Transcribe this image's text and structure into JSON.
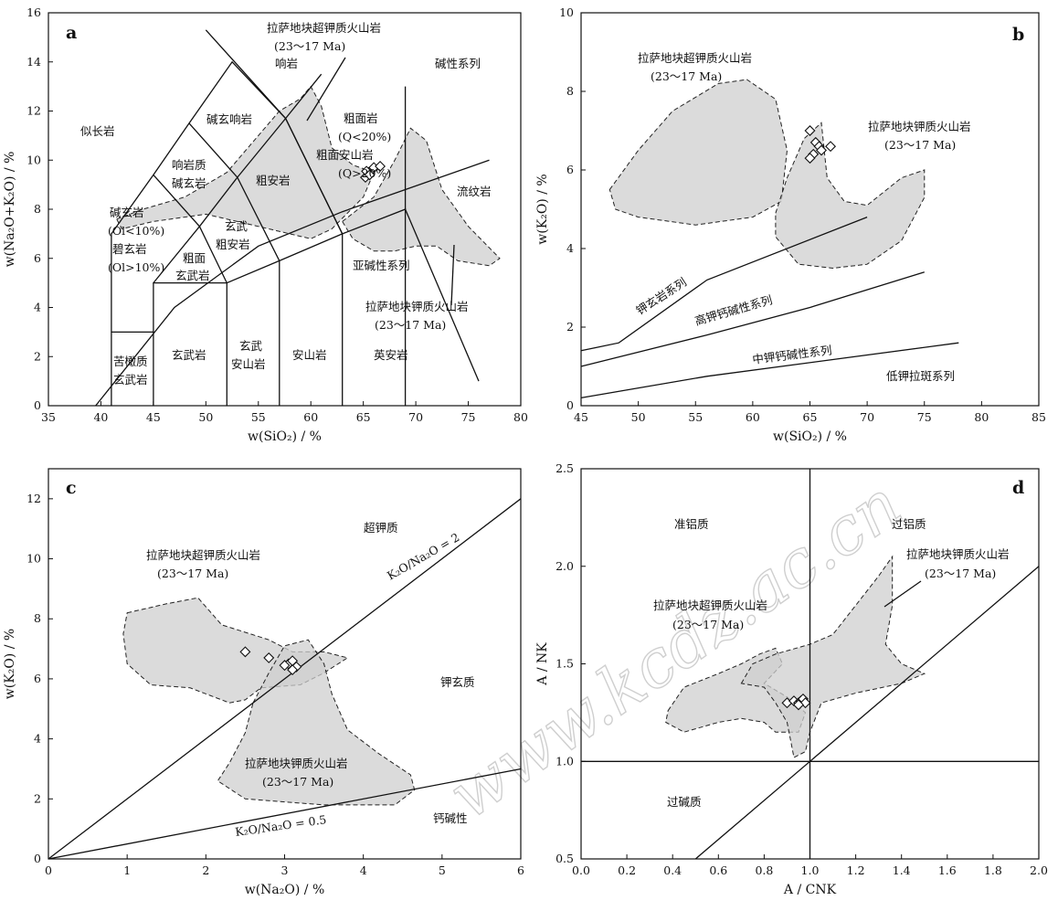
{
  "watermark": "www.kcdz.ac.cn",
  "chart_data": [
    {
      "panel": "a",
      "type": "scatter",
      "xlabel": "w(SiO₂) / %",
      "ylabel": "w(Na₂O+K₂O) / %",
      "xlim": [
        35,
        80
      ],
      "ylim": [
        0,
        16
      ],
      "xticks": [
        35,
        40,
        45,
        50,
        55,
        60,
        65,
        70,
        75,
        80
      ],
      "yticks": [
        0,
        2,
        4,
        6,
        8,
        10,
        12,
        14,
        16
      ],
      "boundaries": [
        [
          [
            41,
            0
          ],
          [
            41,
            7
          ],
          [
            45,
            9.4
          ],
          [
            48.4,
            11.5
          ],
          [
            52.5,
            14
          ],
          [
            57.6,
            11.7
          ],
          [
            63,
            7
          ],
          [
            69,
            8
          ],
          [
            69,
            0
          ]
        ],
        [
          [
            41,
            3
          ],
          [
            45,
            3
          ]
        ],
        [
          [
            45,
            0
          ],
          [
            45,
            5
          ],
          [
            52,
            5
          ],
          [
            57,
            5.9
          ],
          [
            63,
            7
          ]
        ],
        [
          [
            52,
            0
          ],
          [
            52,
            5
          ]
        ],
        [
          [
            57,
            0
          ],
          [
            57,
            5.9
          ]
        ],
        [
          [
            63,
            0
          ],
          [
            63,
            7
          ]
        ],
        [
          [
            45,
            5
          ],
          [
            49.4,
            7.3
          ],
          [
            53,
            9.3
          ],
          [
            57.6,
            11.7
          ],
          [
            61,
            13.5
          ]
        ],
        [
          [
            52,
            5
          ],
          [
            49.4,
            7.3
          ],
          [
            45,
            9.4
          ]
        ],
        [
          [
            57,
            5.9
          ],
          [
            53,
            9.3
          ],
          [
            48.4,
            11.5
          ]
        ],
        [
          [
            63,
            7
          ],
          [
            57.6,
            11.7
          ],
          [
            50,
            15.3
          ]
        ],
        [
          [
            69,
            8
          ],
          [
            69,
            13
          ]
        ],
        [
          [
            69,
            8
          ],
          [
            76,
            1
          ]
        ],
        [
          [
            39.5,
            0
          ],
          [
            47,
            4
          ],
          [
            55,
            6.5
          ],
          [
            63,
            7.9
          ],
          [
            69,
            8.8
          ],
          [
            77,
            10
          ]
        ]
      ],
      "fields": [
        {
          "label": "拉萨地块超钾质火山岩",
          "age": "(23～17 Ma)",
          "polygon": [
            [
              41.5,
              7.6
            ],
            [
              44,
              8
            ],
            [
              48,
              8.5
            ],
            [
              52,
              9.5
            ],
            [
              55,
              11
            ],
            [
              57,
              12
            ],
            [
              59,
              12.5
            ],
            [
              60,
              13
            ],
            [
              61,
              12.2
            ],
            [
              62,
              10.5
            ],
            [
              64,
              9.8
            ],
            [
              66,
              9.5
            ],
            [
              65,
              8.5
            ],
            [
              62,
              7.2
            ],
            [
              60,
              6.8
            ],
            [
              58,
              7
            ],
            [
              55,
              7.3
            ],
            [
              50,
              7.8
            ],
            [
              45,
              7.5
            ],
            [
              42,
              7.2
            ]
          ]
        },
        {
          "label": "拉萨地块钾质火山岩",
          "age": "(23～17 Ma)",
          "polygon": [
            [
              63,
              7.5
            ],
            [
              66,
              8.5
            ],
            [
              68,
              10
            ],
            [
              69.5,
              11.3
            ],
            [
              71,
              10.8
            ],
            [
              72.5,
              8.8
            ],
            [
              75,
              7.3
            ],
            [
              78,
              6
            ],
            [
              77,
              5.7
            ],
            [
              74,
              5.9
            ],
            [
              72,
              6.5
            ],
            [
              70,
              6.5
            ],
            [
              68,
              6.3
            ],
            [
              66,
              6.3
            ],
            [
              64,
              6.8
            ]
          ]
        }
      ],
      "points": [
        [
          65.2,
          9.3
        ],
        [
          65.5,
          9.5
        ],
        [
          65.8,
          9.6
        ],
        [
          66,
          9.7
        ],
        [
          65.3,
          9.55
        ],
        [
          66.6,
          9.75
        ],
        [
          65.6,
          9.4
        ]
      ],
      "labels": [
        "似长岩",
        "碱玄响岩",
        "响岩",
        "响岩质",
        "碱玄岩",
        "碱玄岩",
        "(Ol<10%)",
        "碧玄岩",
        "(Ol>10%)",
        "粗面",
        "玄武岩",
        "玄武",
        "粗安岩",
        "粗安岩",
        "粗面岩",
        "(Q<20%)",
        "粗面安山岩",
        "(Q>20%)",
        "流纹岩",
        "碱性系列",
        "亚碱性系列",
        "苦橄质",
        "玄武岩",
        "玄武岩",
        "玄武",
        "安山岩",
        "安山岩",
        "英安岩"
      ]
    },
    {
      "panel": "b",
      "type": "scatter",
      "xlabel": "w(SiO₂) / %",
      "ylabel": "w(K₂O) / %",
      "xlim": [
        45,
        85
      ],
      "ylim": [
        0,
        10
      ],
      "xticks": [
        45,
        50,
        55,
        60,
        65,
        70,
        75,
        80,
        85
      ],
      "yticks": [
        0,
        2,
        4,
        6,
        8,
        10
      ],
      "boundaries": [
        [
          [
            45,
            1.4
          ],
          [
            48.3,
            1.6
          ],
          [
            56,
            3.2
          ],
          [
            70,
            4.8
          ]
        ],
        [
          [
            45,
            1
          ],
          [
            56,
            1.8
          ],
          [
            65,
            2.5
          ],
          [
            75,
            3.4
          ]
        ],
        [
          [
            45,
            0.2
          ],
          [
            56,
            0.75
          ],
          [
            78,
            1.6
          ]
        ]
      ],
      "fields": [
        {
          "label": "拉萨地块超钾质火山岩",
          "age": "(23～17 Ma)",
          "polygon": [
            [
              47.5,
              5.5
            ],
            [
              50,
              6.5
            ],
            [
              53,
              7.5
            ],
            [
              57,
              8.2
            ],
            [
              59.5,
              8.3
            ],
            [
              62,
              7.8
            ],
            [
              63,
              6.5
            ],
            [
              62.5,
              5.2
            ],
            [
              60,
              4.8
            ],
            [
              55,
              4.6
            ],
            [
              50,
              4.8
            ],
            [
              48,
              5
            ]
          ]
        },
        {
          "label": "拉萨地块钾质火山岩",
          "age": "(23～17 Ma)",
          "polygon": [
            [
              62,
              4.9
            ],
            [
              63,
              5.8
            ],
            [
              64.5,
              6.8
            ],
            [
              66,
              7.2
            ],
            [
              66.5,
              5.8
            ],
            [
              68,
              5.2
            ],
            [
              70,
              5.1
            ],
            [
              73,
              5.8
            ],
            [
              75,
              6
            ],
            [
              75,
              5.3
            ],
            [
              73,
              4.2
            ],
            [
              70,
              3.6
            ],
            [
              67,
              3.5
            ],
            [
              64,
              3.6
            ],
            [
              62,
              4.3
            ]
          ]
        }
      ],
      "points": [
        [
          65,
          7
        ],
        [
          65.5,
          6.7
        ],
        [
          65.8,
          6.6
        ],
        [
          66,
          6.5
        ],
        [
          66.8,
          6.6
        ],
        [
          65.3,
          6.4
        ],
        [
          65,
          6.3
        ]
      ],
      "labels": [
        "钾玄岩系列",
        "高钾钙碱性系列",
        "中钾钙碱性系列",
        "低钾拉斑系列"
      ]
    },
    {
      "panel": "c",
      "type": "scatter",
      "xlabel": "w(Na₂O) / %",
      "ylabel": "w(K₂O) / %",
      "xlim": [
        0,
        6
      ],
      "ylim": [
        0,
        13
      ],
      "xticks": [
        0,
        1,
        2,
        3,
        4,
        5,
        6
      ],
      "yticks": [
        0,
        2,
        4,
        6,
        8,
        10,
        12
      ],
      "boundaries": [
        [
          [
            0,
            0
          ],
          [
            6,
            12
          ]
        ],
        [
          [
            0,
            0
          ],
          [
            6,
            3
          ]
        ]
      ],
      "fields": [
        {
          "label": "拉萨地块超钾质火山岩",
          "age": "(23～17 Ma)",
          "polygon": [
            [
              1,
              8.2
            ],
            [
              1.5,
              8.5
            ],
            [
              1.9,
              8.7
            ],
            [
              2.2,
              7.8
            ],
            [
              2.8,
              7.3
            ],
            [
              3.1,
              6.9
            ],
            [
              3.5,
              6.9
            ],
            [
              3.8,
              6.7
            ],
            [
              3.5,
              6.2
            ],
            [
              3.2,
              5.8
            ],
            [
              2.7,
              5.7
            ],
            [
              2.5,
              5.3
            ],
            [
              2.3,
              5.2
            ],
            [
              1.8,
              5.7
            ],
            [
              1.3,
              5.8
            ],
            [
              1,
              6.5
            ],
            [
              0.95,
              7.5
            ]
          ]
        },
        {
          "label": "拉萨地块钾质火山岩",
          "age": "(23～17 Ma)",
          "polygon": [
            [
              2.6,
              5.2
            ],
            [
              2.8,
              6.2
            ],
            [
              3.0,
              7.1
            ],
            [
              3.3,
              7.3
            ],
            [
              3.5,
              6.5
            ],
            [
              3.6,
              5.5
            ],
            [
              3.8,
              4.3
            ],
            [
              4.2,
              3.5
            ],
            [
              4.6,
              2.8
            ],
            [
              4.65,
              2.3
            ],
            [
              4.4,
              1.8
            ],
            [
              3.5,
              1.8
            ],
            [
              2.5,
              2.0
            ],
            [
              2.15,
              2.6
            ],
            [
              2.3,
              3.2
            ],
            [
              2.5,
              4.2
            ]
          ]
        }
      ],
      "points": [
        [
          2.5,
          6.9
        ],
        [
          2.8,
          6.7
        ],
        [
          3.05,
          6.5
        ],
        [
          3.1,
          6.6
        ],
        [
          3.15,
          6.4
        ],
        [
          3.1,
          6.3
        ],
        [
          3.0,
          6.45
        ]
      ],
      "labels": [
        "超钾质",
        "K₂O/Na₂O = 2",
        "钾玄质",
        "钙碱性",
        "K₂O/Na₂O = 0.5"
      ]
    },
    {
      "panel": "d",
      "type": "scatter",
      "xlabel": "A / CNK",
      "ylabel": "A / NK",
      "xlim": [
        0,
        2
      ],
      "ylim": [
        0.5,
        2.5
      ],
      "xticks": [
        0.0,
        0.2,
        0.4,
        0.6,
        0.8,
        1.0,
        1.2,
        1.4,
        1.6,
        1.8,
        2.0
      ],
      "yticks": [
        0.5,
        1.0,
        1.5,
        2.0,
        2.5
      ],
      "boundaries": [
        [
          [
            1,
            0.5
          ],
          [
            1,
            2.5
          ]
        ],
        [
          [
            0,
            1
          ],
          [
            2,
            1
          ]
        ],
        [
          [
            0.5,
            0.5
          ],
          [
            2,
            2
          ]
        ]
      ],
      "fields": [
        {
          "label": "拉萨地块超钾质火山岩",
          "age": "(23～17 Ma)",
          "polygon": [
            [
              0.38,
              1.26
            ],
            [
              0.45,
              1.38
            ],
            [
              0.6,
              1.45
            ],
            [
              0.7,
              1.5
            ],
            [
              0.78,
              1.55
            ],
            [
              0.85,
              1.58
            ],
            [
              0.88,
              1.5
            ],
            [
              0.8,
              1.4
            ],
            [
              0.9,
              1.33
            ],
            [
              0.98,
              1.25
            ],
            [
              0.95,
              1.15
            ],
            [
              0.85,
              1.15
            ],
            [
              0.8,
              1.2
            ],
            [
              0.7,
              1.22
            ],
            [
              0.6,
              1.2
            ],
            [
              0.45,
              1.15
            ],
            [
              0.37,
              1.2
            ]
          ]
        },
        {
          "label": "拉萨地块钾质火山岩",
          "age": "(23～17 Ma)",
          "polygon": [
            [
              0.7,
              1.4
            ],
            [
              0.75,
              1.5
            ],
            [
              0.85,
              1.55
            ],
            [
              1.0,
              1.6
            ],
            [
              1.1,
              1.65
            ],
            [
              1.2,
              1.8
            ],
            [
              1.3,
              1.95
            ],
            [
              1.36,
              2.05
            ],
            [
              1.36,
              1.8
            ],
            [
              1.33,
              1.6
            ],
            [
              1.4,
              1.5
            ],
            [
              1.5,
              1.45
            ],
            [
              1.4,
              1.4
            ],
            [
              1.2,
              1.35
            ],
            [
              1.05,
              1.3
            ],
            [
              1.0,
              1.15
            ],
            [
              0.98,
              1.05
            ],
            [
              0.93,
              1.02
            ],
            [
              0.9,
              1.2
            ],
            [
              0.85,
              1.3
            ],
            [
              0.8,
              1.38
            ]
          ]
        }
      ],
      "points": [
        [
          0.9,
          1.3
        ],
        [
          0.93,
          1.31
        ],
        [
          0.95,
          1.3
        ],
        [
          0.96,
          1.31
        ],
        [
          0.97,
          1.32
        ],
        [
          0.98,
          1.3
        ],
        [
          0.95,
          1.29
        ]
      ],
      "labels": [
        "准铝质",
        "过铝质",
        "过碱质"
      ]
    }
  ]
}
